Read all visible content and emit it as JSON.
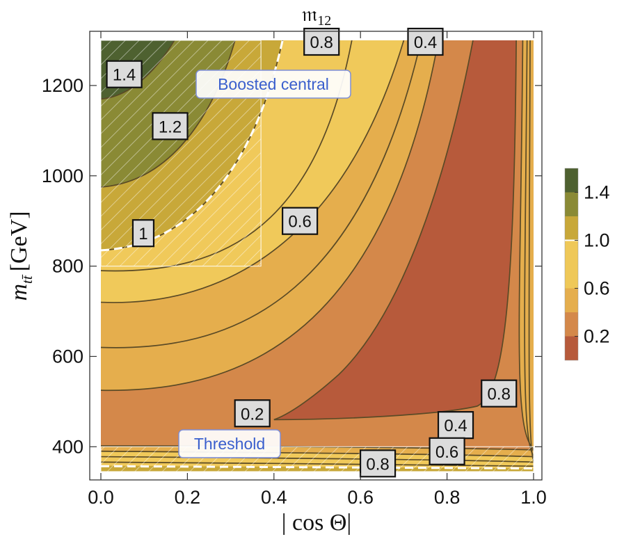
{
  "chart_data": {
    "type": "contour",
    "title": "𝔪",
    "title_subscript": "12",
    "xlabel": "| cos Θ|",
    "ylabel_main": "m",
    "ylabel_sub": "tt̄",
    "ylabel_unit": "[GeV]",
    "xlim": [
      0.0,
      1.0
    ],
    "ylim": [
      345,
      1300
    ],
    "x_ticks": [
      {
        "value": 0.0,
        "label": "0.0"
      },
      {
        "value": 0.2,
        "label": "0.2"
      },
      {
        "value": 0.4,
        "label": "0.4"
      },
      {
        "value": 0.6,
        "label": "0.6"
      },
      {
        "value": 0.8,
        "label": "0.8"
      },
      {
        "value": 1.0,
        "label": "1.0"
      }
    ],
    "y_ticks": [
      {
        "value": 400,
        "label": "400"
      },
      {
        "value": 600,
        "label": "600"
      },
      {
        "value": 800,
        "label": "800"
      },
      {
        "value": 1000,
        "label": "1000"
      },
      {
        "value": 1200,
        "label": "1200"
      }
    ],
    "contour_levels": [
      0.2,
      0.4,
      0.6,
      0.8,
      1.0,
      1.2,
      1.4
    ],
    "contour_labels": [
      {
        "text": "1.4",
        "x": 0.054,
        "y": 1225
      },
      {
        "text": "1.2",
        "x": 0.16,
        "y": 1110
      },
      {
        "text": "1",
        "x": 0.098,
        "y": 873
      },
      {
        "text": "0.6",
        "x": 0.46,
        "y": 900
      },
      {
        "text": "0.8",
        "x": 0.51,
        "y": 1300
      },
      {
        "text": "0.4",
        "x": 0.75,
        "y": 1300
      },
      {
        "text": "0.2",
        "x": 0.35,
        "y": 474
      },
      {
        "text": "0.8",
        "x": 0.92,
        "y": 518
      },
      {
        "text": "0.4",
        "x": 0.82,
        "y": 448
      },
      {
        "text": "0.6",
        "x": 0.8,
        "y": 390
      },
      {
        "text": "0.8",
        "x": 0.64,
        "y": 363
      }
    ],
    "regions": [
      {
        "name": "Boosted central",
        "x_range": [
          0.0,
          0.37
        ],
        "y_range": [
          800,
          1300
        ]
      },
      {
        "name": "Threshold",
        "x_range": [
          0.0,
          1.0
        ],
        "y_range": [
          345,
          400
        ]
      }
    ],
    "colorbar": {
      "ticks": [
        {
          "value": 0.2,
          "label": "0.2"
        },
        {
          "value": 0.6,
          "label": "0.6"
        },
        {
          "value": 1.0,
          "label": "1.0"
        },
        {
          "value": 1.4,
          "label": "1.4"
        }
      ],
      "bands": [
        {
          "from": 0.0,
          "to": 0.2,
          "color": "#b75a3b"
        },
        {
          "from": 0.2,
          "to": 0.4,
          "color": "#d4884a"
        },
        {
          "from": 0.4,
          "to": 0.6,
          "color": "#e5ae4d"
        },
        {
          "from": 0.6,
          "to": 1.0,
          "color": "#efc858"
        },
        {
          "from": 1.0,
          "to": 1.2,
          "color": "#c8a839"
        },
        {
          "from": 1.2,
          "to": 1.4,
          "color": "#8a8a35"
        },
        {
          "from": 1.4,
          "to": 1.6,
          "color": "#4e6130"
        }
      ]
    },
    "colors": {
      "band_lt_0_2": "#b75a3b",
      "band_0_2_0_4": "#d4884a",
      "band_0_4_0_6": "#e5ae4d",
      "band_0_6_0_8": "#eab850",
      "band_0_8_1_0": "#f0c95a",
      "band_1_0_1_2": "#c8a839",
      "band_1_2_1_4": "#8a8a35",
      "band_gt_1_4": "#4e6130",
      "contour_line": "#5a4a26",
      "region_label_text": "#3a5fcd",
      "region_label_border": "#7f8fd8"
    }
  }
}
